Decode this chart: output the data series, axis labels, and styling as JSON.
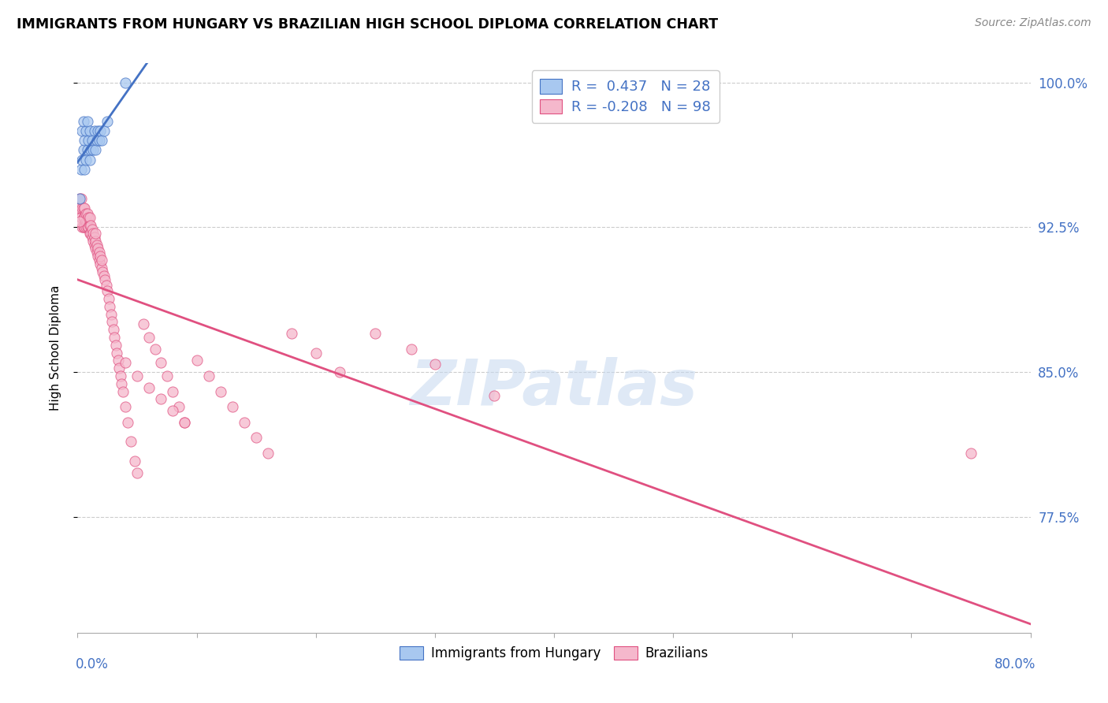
{
  "title": "IMMIGRANTS FROM HUNGARY VS BRAZILIAN HIGH SCHOOL DIPLOMA CORRELATION CHART",
  "source": "Source: ZipAtlas.com",
  "ylabel": "High School Diploma",
  "ytick_labels": [
    "100.0%",
    "92.5%",
    "85.0%",
    "77.5%"
  ],
  "ytick_values": [
    1.0,
    0.925,
    0.85,
    0.775
  ],
  "legend_r1": "R =  0.437   N = 28",
  "legend_r2": "R = -0.208   N = 98",
  "color_hungary": "#a8c8f0",
  "color_brazil": "#f5b8cc",
  "trendline_hungary": "#4472c4",
  "trendline_brazil": "#e05080",
  "watermark": "ZIPatlas",
  "xmin": 0.0,
  "xmax": 0.8,
  "ymin": 0.715,
  "ymax": 1.01,
  "hungary_x": [
    0.002,
    0.003,
    0.004,
    0.004,
    0.005,
    0.005,
    0.006,
    0.006,
    0.007,
    0.007,
    0.008,
    0.008,
    0.009,
    0.01,
    0.01,
    0.011,
    0.012,
    0.013,
    0.014,
    0.015,
    0.016,
    0.017,
    0.018,
    0.019,
    0.02,
    0.022,
    0.025,
    0.04
  ],
  "hungary_y": [
    0.94,
    0.955,
    0.96,
    0.975,
    0.965,
    0.98,
    0.955,
    0.97,
    0.96,
    0.975,
    0.965,
    0.98,
    0.97,
    0.96,
    0.975,
    0.965,
    0.97,
    0.965,
    0.975,
    0.965,
    0.97,
    0.975,
    0.97,
    0.975,
    0.97,
    0.975,
    0.98,
    1.0
  ],
  "brazil_x": [
    0.001,
    0.002,
    0.002,
    0.003,
    0.003,
    0.004,
    0.004,
    0.005,
    0.005,
    0.005,
    0.006,
    0.006,
    0.006,
    0.007,
    0.007,
    0.007,
    0.008,
    0.008,
    0.008,
    0.009,
    0.009,
    0.01,
    0.01,
    0.01,
    0.011,
    0.011,
    0.012,
    0.012,
    0.013,
    0.013,
    0.014,
    0.014,
    0.015,
    0.015,
    0.015,
    0.016,
    0.016,
    0.017,
    0.017,
    0.018,
    0.018,
    0.019,
    0.019,
    0.02,
    0.02,
    0.021,
    0.022,
    0.023,
    0.024,
    0.025,
    0.026,
    0.027,
    0.028,
    0.029,
    0.03,
    0.031,
    0.032,
    0.033,
    0.034,
    0.035,
    0.036,
    0.037,
    0.038,
    0.04,
    0.042,
    0.045,
    0.048,
    0.05,
    0.055,
    0.06,
    0.065,
    0.07,
    0.075,
    0.08,
    0.085,
    0.09,
    0.1,
    0.11,
    0.12,
    0.13,
    0.14,
    0.15,
    0.16,
    0.18,
    0.2,
    0.22,
    0.25,
    0.28,
    0.3,
    0.35,
    0.04,
    0.05,
    0.06,
    0.07,
    0.08,
    0.09,
    0.75,
    0.0015
  ],
  "brazil_y": [
    0.935,
    0.935,
    0.94,
    0.93,
    0.94,
    0.925,
    0.935,
    0.925,
    0.93,
    0.935,
    0.925,
    0.93,
    0.935,
    0.925,
    0.928,
    0.932,
    0.925,
    0.928,
    0.932,
    0.925,
    0.93,
    0.922,
    0.926,
    0.93,
    0.922,
    0.926,
    0.92,
    0.924,
    0.918,
    0.922,
    0.916,
    0.92,
    0.914,
    0.918,
    0.922,
    0.912,
    0.916,
    0.91,
    0.914,
    0.908,
    0.912,
    0.906,
    0.91,
    0.904,
    0.908,
    0.902,
    0.9,
    0.898,
    0.895,
    0.892,
    0.888,
    0.884,
    0.88,
    0.876,
    0.872,
    0.868,
    0.864,
    0.86,
    0.856,
    0.852,
    0.848,
    0.844,
    0.84,
    0.832,
    0.824,
    0.814,
    0.804,
    0.798,
    0.875,
    0.868,
    0.862,
    0.855,
    0.848,
    0.84,
    0.832,
    0.824,
    0.856,
    0.848,
    0.84,
    0.832,
    0.824,
    0.816,
    0.808,
    0.87,
    0.86,
    0.85,
    0.87,
    0.862,
    0.854,
    0.838,
    0.855,
    0.848,
    0.842,
    0.836,
    0.83,
    0.824,
    0.808,
    0.928
  ]
}
